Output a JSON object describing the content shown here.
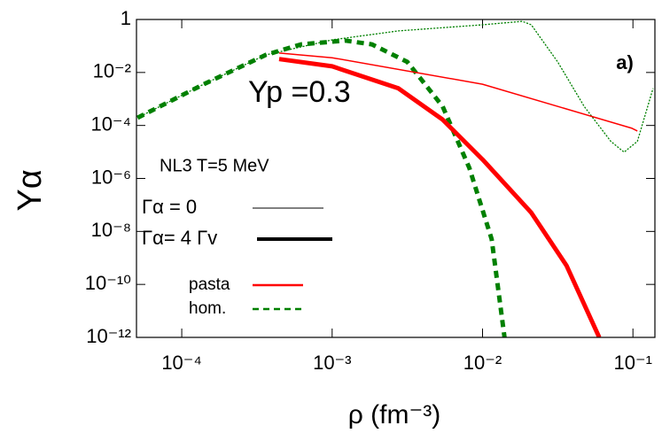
{
  "chart_data": {
    "type": "line",
    "xlabel": "ρ (fm⁻³)",
    "ylabel": "Yα",
    "annotations": [
      "a)",
      "Yp =0.3",
      "NL3  T=5 MeV"
    ],
    "log_x": true,
    "log_y": true,
    "xlim": [
      5e-05,
      0.14
    ],
    "ylim": [
      1e-12,
      1
    ],
    "xticks": [
      {
        "value": 0.0001,
        "label": "10⁻⁴"
      },
      {
        "value": 0.001,
        "label": "10⁻³"
      },
      {
        "value": 0.01,
        "label": "10⁻²"
      },
      {
        "value": 0.1,
        "label": "10⁻¹"
      }
    ],
    "yticks": [
      {
        "value": 1e-12,
        "label": "10⁻¹²"
      },
      {
        "value": 1e-10,
        "label": "10⁻¹⁰"
      },
      {
        "value": 1e-08,
        "label": "10⁻⁸"
      },
      {
        "value": 1e-06,
        "label": "10⁻⁶"
      },
      {
        "value": 0.0001,
        "label": "10⁻⁴"
      },
      {
        "value": 0.01,
        "label": "10⁻²"
      },
      1
    ],
    "legend": [
      {
        "label": "Γα = 0",
        "color": "#000000",
        "width": 1,
        "dash": false
      },
      {
        "label": "Γα= 4 Γv",
        "color": "#000000",
        "width": 4,
        "dash": false
      },
      {
        "label": "pasta",
        "color": "#ff0000",
        "width": 2.5,
        "dash": false
      },
      {
        "label": "hom.",
        "color": "#008000",
        "width": 2.5,
        "dash": true
      }
    ],
    "series": [
      {
        "color": "#008000",
        "width": 1.3,
        "dash": true,
        "x": [
          5.08e-05,
          0.00014,
          0.000362,
          0.001,
          0.00276,
          0.01,
          0.0184,
          0.0211,
          0.0316,
          0.0474,
          0.0713,
          0.0873,
          0.107,
          0.136
        ],
        "values": [
          0.000195,
          0.0036,
          0.046,
          0.17,
          0.37,
          0.63,
          0.85,
          0.63,
          0.025,
          0.00052,
          2.5e-05,
          9.8e-06,
          2.5e-05,
          0.0025
        ]
      },
      {
        "color": "#008000",
        "width": 5,
        "dash": true,
        "x": [
          5.08e-05,
          0.00014,
          0.000362,
          0.000622,
          0.00122,
          0.00184,
          0.00316,
          0.00543,
          0.00817,
          0.0115,
          0.014
        ],
        "values": [
          0.000195,
          0.0036,
          0.046,
          0.115,
          0.16,
          0.115,
          0.025,
          0.00052,
          2.5e-06,
          5.1e-09,
          1e-12
        ]
      },
      {
        "color": "#ff0000",
        "width": 1.5,
        "dash": false,
        "x": [
          0.000444,
          0.001,
          0.01,
          0.0986,
          0.107
        ],
        "values": [
          0.054,
          0.036,
          0.0036,
          7.8e-05,
          6.2e-05
        ]
      },
      {
        "color": "#ff0000",
        "width": 5,
        "dash": false,
        "x": [
          0.000444,
          0.001,
          0.00276,
          0.00543,
          0.01,
          0.0211,
          0.0362,
          0.0597
        ],
        "values": [
          0.032,
          0.017,
          0.0025,
          0.000166,
          5.2e-06,
          5.1e-08,
          5.1e-10,
          1e-12
        ]
      }
    ]
  }
}
